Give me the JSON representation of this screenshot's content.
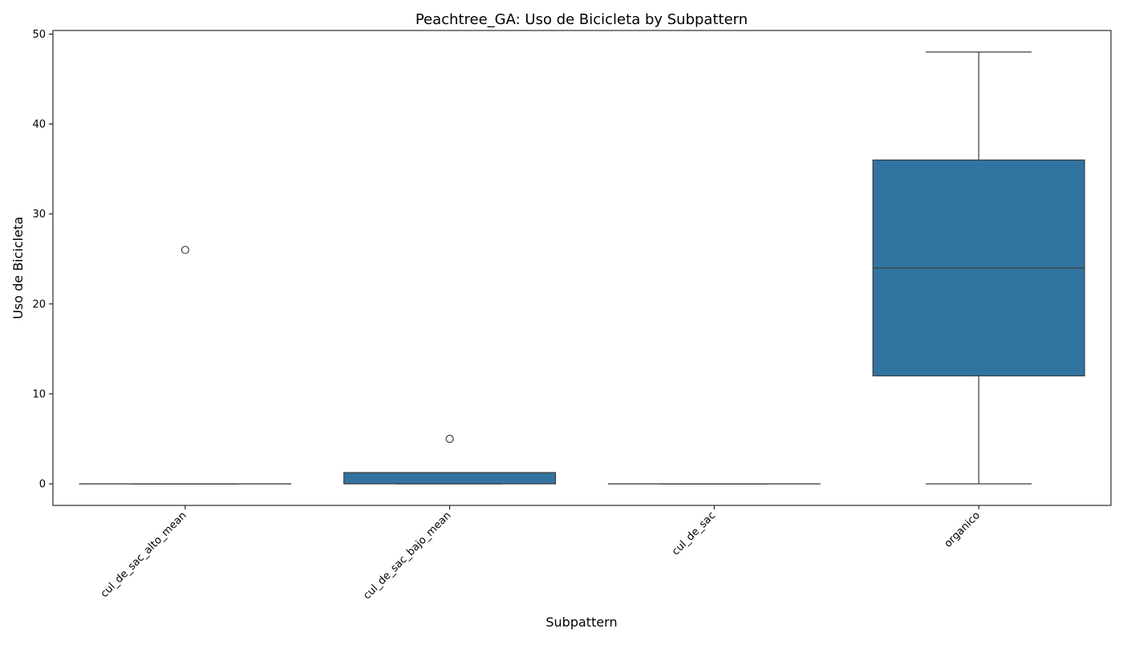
{
  "chart_data": {
    "type": "box",
    "title": "Peachtree_GA: Uso de Bicicleta by Subpattern",
    "xlabel": "Subpattern",
    "ylabel": "Uso de Bicicleta",
    "ylim": [
      -2.4,
      50.4
    ],
    "yticks": [
      0,
      10,
      20,
      30,
      40,
      50
    ],
    "grid": false,
    "box_color": "#3274a1",
    "line_color": "#3d3d3d",
    "categories": [
      "cul_de_sac_alto_mean",
      "cul_de_sac_bajo_mean",
      "cul_de_sac",
      "organico"
    ],
    "boxes": [
      {
        "category": "cul_de_sac_alto_mean",
        "whisker_low": 0,
        "q1": 0,
        "median": 0,
        "q3": 0,
        "whisker_high": 0,
        "outliers": [
          26
        ]
      },
      {
        "category": "cul_de_sac_bajo_mean",
        "whisker_low": 0,
        "q1": 0,
        "median": 1.25,
        "q3": 1.25,
        "whisker_high": 1.25,
        "outliers": [
          5
        ]
      },
      {
        "category": "cul_de_sac",
        "whisker_low": 0,
        "q1": 0,
        "median": 0,
        "q3": 0,
        "whisker_high": 0,
        "outliers": []
      },
      {
        "category": "organico",
        "whisker_low": 0,
        "q1": 12,
        "median": 24,
        "q3": 36,
        "whisker_high": 48,
        "outliers": []
      }
    ]
  }
}
